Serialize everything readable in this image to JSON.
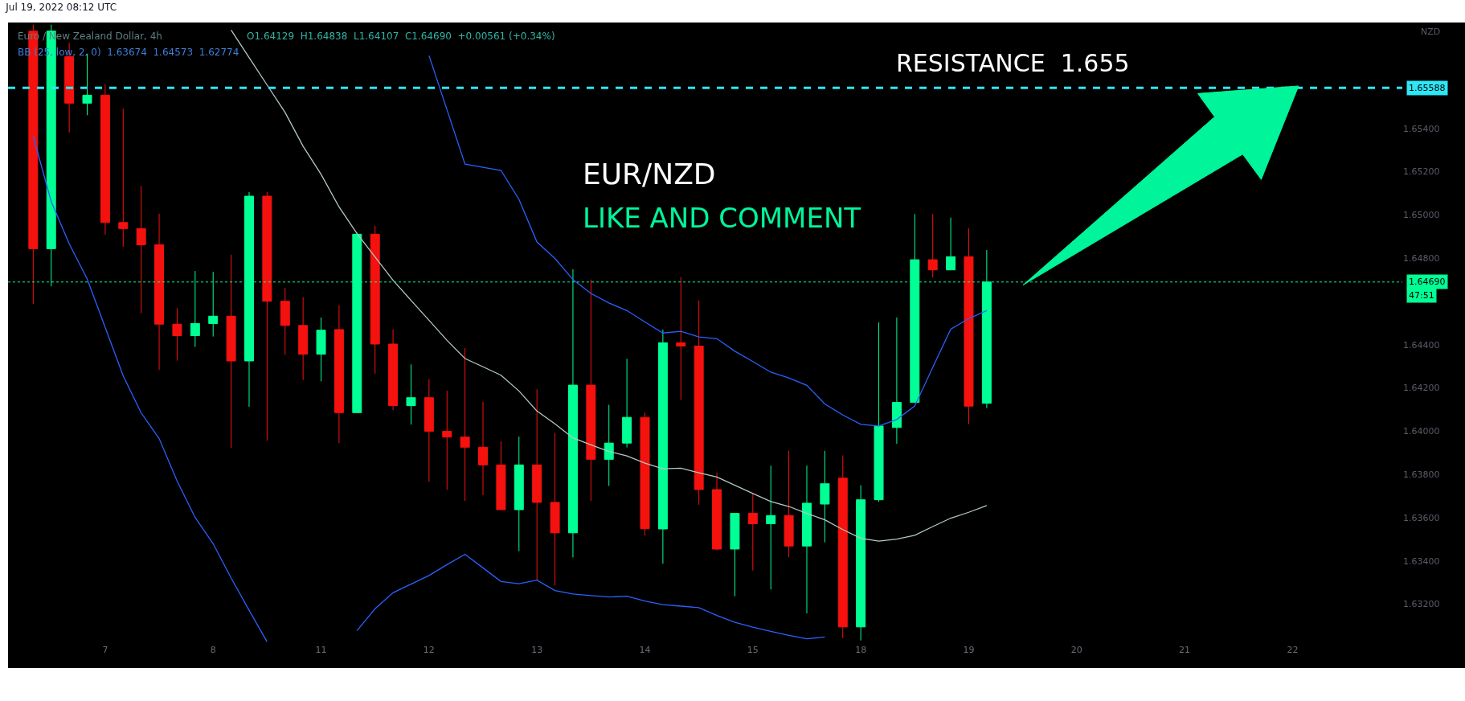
{
  "chart_data": {
    "type": "candlestick",
    "title": "Jul 19, 2022 08:12 UTC",
    "ylabel": "NZD",
    "categories": [
      null,
      null,
      null,
      null,
      "7",
      null,
      null,
      null,
      null,
      null,
      "8",
      null,
      null,
      null,
      null,
      null,
      "11",
      null,
      null,
      null,
      null,
      null,
      "12",
      null,
      null,
      null,
      null,
      null,
      "13",
      null,
      null,
      null,
      null,
      null,
      "14",
      null,
      null,
      null,
      null,
      null,
      "15",
      null,
      null,
      null,
      null,
      null,
      "18",
      null,
      null,
      null,
      null,
      null,
      "19",
      null,
      null,
      null,
      null,
      null,
      "20",
      null,
      null,
      null,
      null,
      null,
      "21",
      null,
      null,
      null,
      null,
      null,
      "22",
      null,
      null,
      null,
      null,
      null,
      null
    ],
    "ohlc": [
      [
        1.6585,
        1.6588,
        1.64588,
        1.64844
      ],
      [
        1.64844,
        1.6588,
        1.6467,
        1.6585
      ],
      [
        1.65732,
        1.65797,
        1.65382,
        1.65517
      ],
      [
        1.65517,
        1.65746,
        1.65461,
        1.65554
      ],
      [
        1.65554,
        1.65605,
        1.64909,
        1.64965
      ],
      [
        1.64965,
        1.65492,
        1.64853,
        1.64937
      ],
      [
        1.64937,
        1.65134,
        1.64545,
        1.64862
      ],
      [
        1.64862,
        1.65006,
        1.64283,
        1.64495
      ],
      [
        1.64495,
        1.64569,
        1.64326,
        1.64442
      ],
      [
        1.64442,
        1.64741,
        1.6439,
        1.64498
      ],
      [
        1.64498,
        1.64737,
        1.64438,
        1.64532
      ],
      [
        1.64532,
        1.64816,
        1.63923,
        1.64325
      ],
      [
        1.64325,
        1.65106,
        1.64113,
        1.65087
      ],
      [
        1.65087,
        1.65106,
        1.63956,
        1.64601
      ],
      [
        1.64601,
        1.64663,
        1.64353,
        1.64489
      ],
      [
        1.64489,
        1.6462,
        1.64237,
        1.64356
      ],
      [
        1.64356,
        1.64526,
        1.64231,
        1.64467
      ],
      [
        1.6447,
        1.64583,
        1.63945,
        1.64086
      ],
      [
        1.64086,
        1.64918,
        1.64086,
        1.64911
      ],
      [
        1.64911,
        1.6495,
        1.64266,
        1.64403
      ],
      [
        1.64403,
        1.6447,
        1.64097,
        1.64118
      ],
      [
        1.64118,
        1.64309,
        1.64031,
        1.64155
      ],
      [
        1.64155,
        1.64241,
        1.63766,
        1.64
      ],
      [
        1.64,
        1.64187,
        1.63729,
        1.63973
      ],
      [
        1.63973,
        1.64384,
        1.63678,
        1.63926
      ],
      [
        1.63926,
        1.64136,
        1.63704,
        1.63844
      ],
      [
        1.63844,
        1.63953,
        1.63637,
        1.63637
      ],
      [
        1.63637,
        1.63975,
        1.63445,
        1.63844
      ],
      [
        1.63844,
        1.64194,
        1.63311,
        1.63671
      ],
      [
        1.63671,
        1.63992,
        1.63287,
        1.6353
      ],
      [
        1.6353,
        1.64749,
        1.63416,
        1.64213
      ],
      [
        1.64213,
        1.64701,
        1.63678,
        1.6387
      ],
      [
        1.6387,
        1.64122,
        1.63747,
        1.63945
      ],
      [
        1.63945,
        1.64335,
        1.63925,
        1.64064
      ],
      [
        1.64064,
        1.64086,
        1.63517,
        1.63549
      ],
      [
        1.63548,
        1.6447,
        1.63387,
        1.64409
      ],
      [
        1.64409,
        1.64713,
        1.64145,
        1.64394
      ],
      [
        1.64394,
        1.64605,
        1.6366,
        1.6373
      ],
      [
        1.6373,
        1.63809,
        1.63449,
        1.63455
      ],
      [
        1.63455,
        1.6362,
        1.63237,
        1.6362
      ],
      [
        1.6362,
        1.63713,
        1.63356,
        1.63572
      ],
      [
        1.63572,
        1.63841,
        1.63268,
        1.6361
      ],
      [
        1.6361,
        1.63909,
        1.63418,
        1.63469
      ],
      [
        1.63469,
        1.63841,
        1.63158,
        1.63667
      ],
      [
        1.63663,
        1.63909,
        1.63486,
        1.63757
      ],
      [
        1.63783,
        1.63888,
        1.63043,
        1.63095
      ],
      [
        1.63095,
        1.6375,
        1.63032,
        1.63683
      ],
      [
        1.63683,
        1.64503,
        1.63673,
        1.64024
      ],
      [
        1.64017,
        1.64526,
        1.63942,
        1.64133
      ],
      [
        1.64133,
        1.65004,
        1.64133,
        1.64793
      ],
      [
        1.64793,
        1.65004,
        1.64711,
        1.64746
      ],
      [
        1.64746,
        1.64988,
        1.64746,
        1.64807
      ],
      [
        1.64807,
        1.64938,
        1.64033,
        1.64116
      ],
      [
        1.64129,
        1.64838,
        1.64107,
        1.6469
      ],
      null,
      null,
      null,
      null,
      null,
      null,
      null,
      null,
      null,
      null,
      null,
      null,
      null,
      null,
      null,
      null,
      null,
      null,
      null,
      null,
      null,
      null,
      null
    ],
    "colors": [
      "#f5120e",
      "#00ff95",
      "#f5120e",
      "#00ff95",
      "#f5120e",
      "#f5120e",
      "#f5120e",
      "#f5120e",
      "#f5120e",
      "#00ff95",
      "#00ff95",
      "#f5120e",
      "#00ff95",
      "#f5120e",
      "#f5120e",
      "#f5120e",
      "#00ff95",
      "#f5120e",
      "#00ff95",
      "#f5120e",
      "#f5120e",
      "#00ff95",
      "#f5120e",
      "#f5120e",
      "#f5120e",
      "#f5120e",
      "#f5120e",
      "#00ff95",
      "#f5120e",
      "#f5120e",
      "#00ff95",
      "#f5120e",
      "#00ff95",
      "#00ff95",
      "#f5120e",
      "#00ff95",
      "#f5120e",
      "#f5120e",
      "#f5120e",
      "#00ff95",
      "#f5120e",
      "#00ff95",
      "#f5120e",
      "#00ff95",
      "#00ff95",
      "#f5120e",
      "#00ff95",
      "#00ff95",
      "#00ff95",
      "#00ff95",
      "#f5120e",
      "#00ff95",
      "#f5120e",
      "#00ff95",
      null,
      null,
      null,
      null,
      null,
      null,
      null,
      null,
      null,
      null,
      null,
      null,
      null,
      null,
      null,
      null,
      null,
      null,
      null,
      null,
      null,
      null,
      null
    ],
    "series": [
      {
        "type": "line",
        "color": "#2962ff",
        "values": [
          null,
          null,
          null,
          null,
          null,
          null,
          null,
          null,
          null,
          null,
          null,
          null,
          null,
          null,
          null,
          null,
          null,
          null,
          null,
          null,
          null,
          null,
          1.65737,
          1.65486,
          1.65235,
          1.6522,
          1.65206,
          1.65072,
          1.64875,
          1.64799,
          1.64701,
          1.64637,
          1.64593,
          1.64558,
          1.64505,
          1.64454,
          1.64462,
          1.64436,
          1.64428,
          1.6437,
          1.64322,
          1.64273,
          1.64246,
          1.64212,
          1.64126,
          1.64075,
          1.64032,
          1.64024,
          1.64054,
          1.64117,
          1.64295,
          1.64472,
          1.64521,
          1.64558,
          null,
          null,
          null,
          null,
          null,
          null,
          null,
          null,
          null,
          null,
          null,
          null,
          null,
          null,
          null,
          null,
          null,
          null,
          null,
          null,
          null,
          null,
          null
        ]
      },
      {
        "type": "line",
        "color": "#b2c8c8",
        "values": [
          null,
          null,
          null,
          null,
          null,
          null,
          null,
          null,
          null,
          null,
          null,
          1.65855,
          1.65728,
          1.65601,
          1.65474,
          1.65318,
          1.65188,
          1.65037,
          1.64914,
          1.64806,
          1.64698,
          1.64605,
          1.64513,
          1.6442,
          1.64336,
          1.64298,
          1.64259,
          1.64186,
          1.64093,
          1.64034,
          1.63969,
          1.63937,
          1.63906,
          1.63886,
          1.63852,
          1.63826,
          1.63829,
          1.63808,
          1.63788,
          1.6375,
          1.63712,
          1.63675,
          1.63652,
          1.6362,
          1.6359,
          1.63545,
          1.63505,
          1.63492,
          1.63501,
          1.63519,
          1.63559,
          1.63598,
          1.63625,
          1.63656,
          null,
          null,
          null,
          null,
          null,
          null,
          null,
          null,
          null,
          null,
          null,
          null,
          null,
          null,
          null,
          null,
          null,
          null,
          null,
          null,
          null,
          null,
          null
        ]
      },
      {
        "type": "line",
        "color": "#2962ff",
        "values": [
          1.65364,
          1.65062,
          1.64867,
          1.64704,
          1.6448,
          1.64256,
          1.64085,
          1.63966,
          1.63769,
          1.63601,
          1.6348,
          1.63321,
          1.63172,
          1.63026,
          null,
          null,
          null,
          null,
          1.63078,
          1.63179,
          1.63253,
          1.63293,
          1.63333,
          1.63383,
          1.63431,
          1.63368,
          1.63305,
          1.63295,
          1.63311,
          1.63263,
          1.63247,
          1.6324,
          1.63233,
          1.63237,
          1.63215,
          1.63198,
          1.63191,
          1.63184,
          1.63148,
          1.63116,
          1.63094,
          1.63074,
          1.63056,
          1.6304,
          1.63048,
          null,
          null,
          null,
          null,
          null,
          null,
          null,
          null,
          null,
          null,
          null,
          null,
          null,
          null,
          null,
          null,
          null,
          null,
          null,
          null,
          null,
          null,
          null,
          null,
          null,
          null,
          null,
          null,
          null,
          null,
          null,
          null
        ]
      }
    ],
    "ylim": [
      1.6302,
      1.6589
    ],
    "yticks": [
      {
        "value": 1.632,
        "label": "1.63200"
      },
      {
        "value": 1.634,
        "label": "1.63400"
      },
      {
        "value": 1.636,
        "label": "1.63600"
      },
      {
        "value": 1.638,
        "label": "1.63800"
      },
      {
        "value": 1.64,
        "label": "1.64000"
      },
      {
        "value": 1.642,
        "label": "1.64200"
      },
      {
        "value": 1.644,
        "label": "1.64400"
      },
      {
        "value": 1.648,
        "label": "1.64800"
      },
      {
        "value": 1.65,
        "label": "1.65000"
      },
      {
        "value": 1.652,
        "label": "1.65200"
      },
      {
        "value": 1.654,
        "label": "1.65400"
      }
    ],
    "ref_lines": [
      {
        "axis": "y",
        "value": 1.65588,
        "label": "1.65588",
        "color": "#2ee6f5",
        "line_style": "dashed"
      },
      {
        "axis": "y",
        "value": 1.6469,
        "label": "1.64690",
        "color": "#00ff95",
        "line_style": "dotted"
      }
    ],
    "annotations": [
      "RESISTANCE  1.655",
      "EUR/NZD",
      "LIKE AND COMMENT",
      "Euro / New Zealand Dollar, 4h",
      "O1.64129  H1.64838  L1.64107  C1.64690  +0.00561 (+0.34%)",
      "BB (25, low, 2, 0)  1.63674  1.64573  1.62774",
      "47:51"
    ],
    "grid": false
  }
}
